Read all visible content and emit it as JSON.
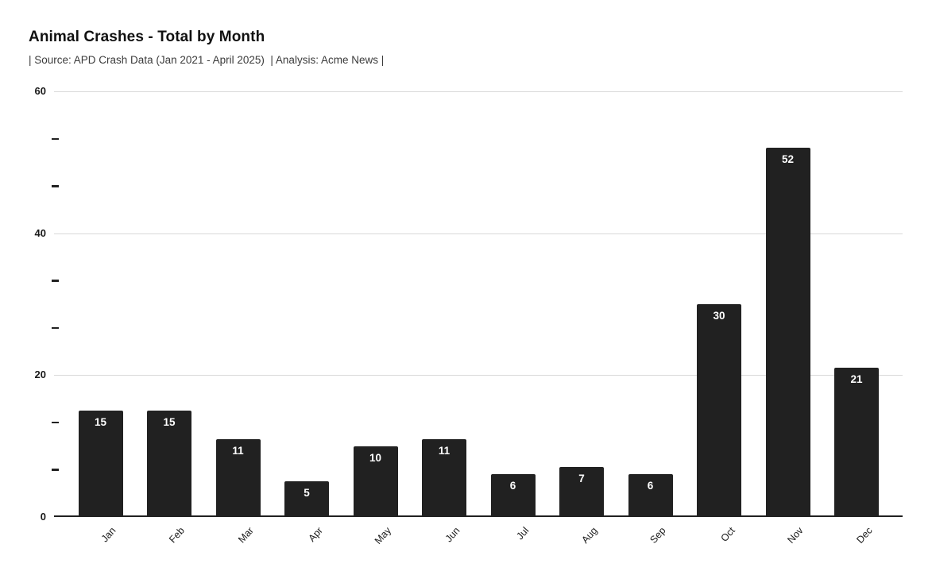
{
  "header": {
    "title": "Animal Crashes - Total by Month",
    "subtitle": "| Source: APD Crash Data (Jan 2021 - April 2025)  | Analysis: Acme News |"
  },
  "chart_data": {
    "type": "bar",
    "title": "Animal Crashes - Total by Month",
    "categories": [
      "Jan",
      "Feb",
      "Mar",
      "Apr",
      "May",
      "Jun",
      "Jul",
      "Aug",
      "Sep",
      "Oct",
      "Nov",
      "Dec"
    ],
    "values": [
      15,
      15,
      11,
      5,
      10,
      11,
      6,
      7,
      6,
      30,
      52,
      21
    ],
    "xlabel": "",
    "ylabel": "",
    "ylim": [
      0,
      60
    ],
    "yticks_major": [
      0,
      20,
      40,
      60
    ],
    "yticks_minor": [
      6.67,
      13.33,
      26.67,
      33.33,
      46.67,
      53.33
    ],
    "grid": true,
    "legend": false,
    "bar_color": "#212121",
    "value_label_color": "#ffffff",
    "x_label_angle_deg": -48
  },
  "colors": {
    "background": "#ffffff",
    "bar": "#212121",
    "gridline": "#d9d9d9",
    "axis_line": "#212121",
    "title_text": "#111111",
    "subtitle_text": "#3b3b3b",
    "axis_text": "#1a1a1a",
    "value_label": "#ffffff"
  }
}
